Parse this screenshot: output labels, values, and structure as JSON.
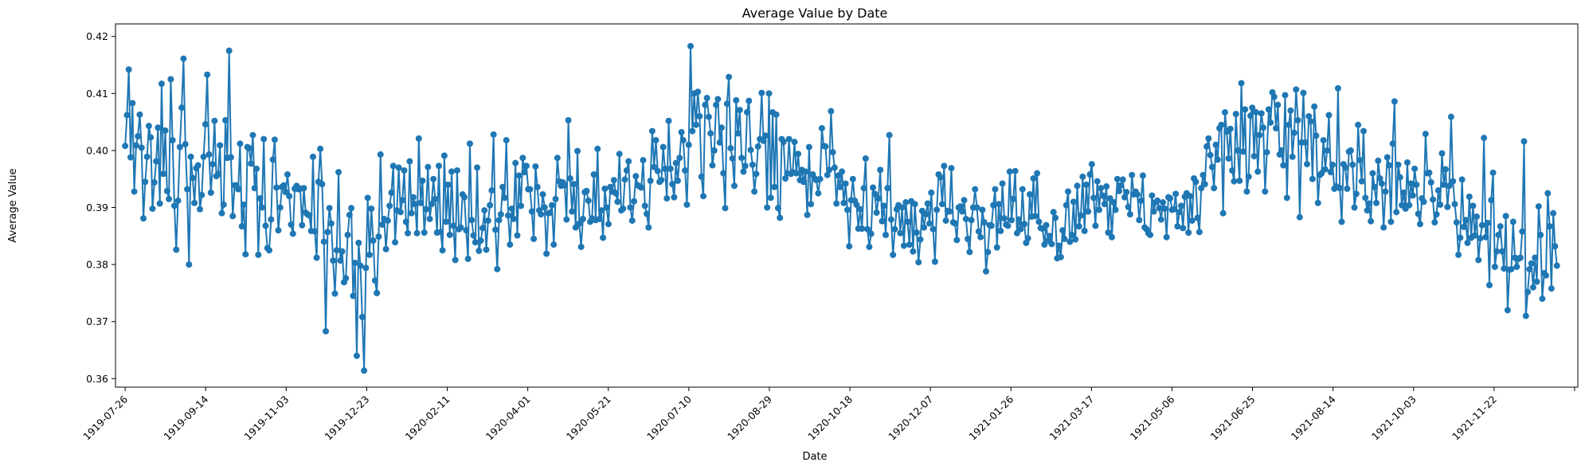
{
  "chart_data": {
    "type": "line",
    "title": "Average Value by Date",
    "xlabel": "Date",
    "ylabel": "Average Value",
    "x_range": [
      "1919-07-20",
      "1922-01-13"
    ],
    "ylim": [
      0.3585,
      0.4222
    ],
    "grid": false,
    "legend": "none",
    "marker": "circle",
    "color": "#1f77b4",
    "x_ticks": [
      "1919-07-26",
      "1919-09-14",
      "1919-11-03",
      "1919-12-23",
      "1920-02-11",
      "1920-04-01",
      "1920-05-21",
      "1920-07-10",
      "1920-08-29",
      "1920-10-18",
      "1920-12-07",
      "1921-01-26",
      "1921-03-17",
      "1921-05-06",
      "1921-06-25",
      "1921-08-14",
      "1921-10-03",
      "1921-11-22",
      ""
    ],
    "y_ticks": [
      0.36,
      0.37,
      0.38,
      0.39,
      0.4,
      0.41,
      0.42
    ],
    "y_tick_labels": [
      "0.36",
      "0.37",
      "0.38",
      "0.39",
      "0.40",
      "0.41",
      "0.42"
    ],
    "series": [
      {
        "start": "1919-07-26",
        "end": "1921-12-31",
        "values": [
          0.4008,
          0.4062,
          0.4142,
          0.3988,
          0.4083,
          0.3928,
          0.4009,
          0.4025,
          0.4063,
          0.4005,
          0.3881,
          0.3945,
          0.3989,
          0.4043,
          0.4023,
          0.3898,
          0.3944,
          0.3981,
          0.404,
          0.3907,
          0.4117,
          0.3959,
          0.4035,
          0.3929,
          0.3915,
          0.4125,
          0.4018,
          0.3903,
          0.3826,
          0.3912,
          0.4006,
          0.4075,
          0.4161,
          0.4011,
          0.3932,
          0.38,
          0.3989,
          0.3952,
          0.3908,
          0.3969,
          0.3974,
          0.3897,
          0.3922,
          0.3989,
          0.4046,
          0.4133,
          0.3993,
          0.3926,
          0.3976,
          0.4052,
          0.3955,
          0.3959,
          0.4009,
          0.389,
          0.3905,
          0.4053,
          0.3987,
          0.4175,
          0.3988,
          0.3885,
          0.3939,
          0.3939,
          0.3932,
          0.4012,
          0.3867,
          0.3905,
          0.3818,
          0.4006,
          0.4004,
          0.3977,
          0.4027,
          0.3934,
          0.3968,
          0.3817,
          0.3916,
          0.39,
          0.402,
          0.3868,
          0.3829,
          0.3825,
          0.3879,
          0.3984,
          0.4019,
          0.3935,
          0.386,
          0.39,
          0.3936,
          0.3939,
          0.3927,
          0.3958,
          0.392,
          0.387,
          0.3854,
          0.3933,
          0.3938,
          0.3932,
          0.3933,
          0.3869,
          0.3934,
          0.3891,
          0.3888,
          0.3886,
          0.3859,
          0.3989,
          0.3858,
          0.3812,
          0.3945,
          0.4003,
          0.3941,
          0.384,
          0.3683,
          0.3857,
          0.3899,
          0.3872,
          0.3807,
          0.3749,
          0.3825,
          0.3962,
          0.3807,
          0.3823,
          0.3769,
          0.3776,
          0.3852,
          0.3887,
          0.3899,
          0.3745,
          0.3803,
          0.364,
          0.3838,
          0.3798,
          0.3708,
          0.3614,
          0.3794,
          0.3917,
          0.3817,
          0.3898,
          0.3842,
          0.3772,
          0.375,
          0.3849,
          0.3993,
          0.387,
          0.388,
          0.3827,
          0.3877,
          0.3903,
          0.3926,
          0.3973,
          0.3839,
          0.3895,
          0.397,
          0.3892,
          0.3913,
          0.3965,
          0.3875,
          0.3855,
          0.3981,
          0.389,
          0.3918,
          0.3906,
          0.3855,
          0.4021,
          0.3908,
          0.3947,
          0.3856,
          0.3897,
          0.3971,
          0.388,
          0.3906,
          0.395,
          0.3915,
          0.3856,
          0.3973,
          0.3857,
          0.3825,
          0.3991,
          0.3875,
          0.394,
          0.3852,
          0.3963,
          0.3868,
          0.3808,
          0.3965,
          0.3862,
          0.3865,
          0.3923,
          0.3918,
          0.386,
          0.381,
          0.4012,
          0.3878,
          0.3851,
          0.3839,
          0.397,
          0.3824,
          0.3842,
          0.3864,
          0.3895,
          0.3826,
          0.3877,
          0.3904,
          0.393,
          0.4028,
          0.3861,
          0.3792,
          0.3878,
          0.3888,
          0.3936,
          0.3917,
          0.4018,
          0.3886,
          0.3835,
          0.3898,
          0.388,
          0.3978,
          0.3851,
          0.3956,
          0.3903,
          0.3987,
          0.3962,
          0.3973,
          0.3932,
          0.3932,
          0.3893,
          0.3845,
          0.3972,
          0.3936,
          0.3895,
          0.3888,
          0.3923,
          0.39,
          0.3819,
          0.389,
          0.3891,
          0.3904,
          0.3835,
          0.3915,
          0.3987,
          0.3946,
          0.3938,
          0.3944,
          0.3939,
          0.3879,
          0.4053,
          0.3951,
          0.3893,
          0.3941,
          0.3865,
          0.3999,
          0.3872,
          0.3831,
          0.388,
          0.3927,
          0.3929,
          0.3912,
          0.3875,
          0.3881,
          0.3958,
          0.3878,
          0.4003,
          0.388,
          0.3895,
          0.3847,
          0.3933,
          0.39,
          0.3871,
          0.3936,
          0.3928,
          0.3948,
          0.3925,
          0.391,
          0.3994,
          0.3895,
          0.3898,
          0.3949,
          0.3965,
          0.3981,
          0.39,
          0.3877,
          0.3911,
          0.3955,
          0.3939,
          0.3937,
          0.3935,
          0.3983,
          0.3903,
          0.3889,
          0.3865,
          0.3947,
          0.4034,
          0.3971,
          0.4018,
          0.3964,
          0.3945,
          0.3948,
          0.4006,
          0.3968,
          0.3916,
          0.4052,
          0.3968,
          0.3941,
          0.3918,
          0.3978,
          0.3947,
          0.3987,
          0.4032,
          0.4018,
          0.3965,
          0.3905,
          0.401,
          0.4183,
          0.4034,
          0.41,
          0.4045,
          0.4103,
          0.406,
          0.3954,
          0.392,
          0.408,
          0.4092,
          0.4059,
          0.403,
          0.3974,
          0.4,
          0.408,
          0.409,
          0.4014,
          0.404,
          0.396,
          0.3899,
          0.4082,
          0.4129,
          0.4004,
          0.3986,
          0.3938,
          0.4088,
          0.403,
          0.4071,
          0.3987,
          0.3963,
          0.3973,
          0.4067,
          0.4087,
          0.4001,
          0.3975,
          0.3928,
          0.3959,
          0.4007,
          0.402,
          0.4101,
          0.4017,
          0.4026,
          0.39,
          0.41,
          0.3917,
          0.4067,
          0.3936,
          0.4063,
          0.3899,
          0.3882,
          0.402,
          0.4015,
          0.3951,
          0.396,
          0.402,
          0.3959,
          0.3962,
          0.4015,
          0.396,
          0.3994,
          0.3948,
          0.3966,
          0.3945,
          0.3963,
          0.3887,
          0.4006,
          0.3906,
          0.3958,
          0.3951,
          0.3948,
          0.3925,
          0.395,
          0.4039,
          0.4008,
          0.4007,
          0.3957,
          0.3966,
          0.4069,
          0.3997,
          0.397,
          0.3907,
          0.3956,
          0.3936,
          0.3963,
          0.3908,
          0.3942,
          0.3896,
          0.3832,
          0.3913,
          0.395,
          0.3912,
          0.3905,
          0.3863,
          0.3897,
          0.3863,
          0.3934,
          0.3986,
          0.3862,
          0.3831,
          0.3854,
          0.3935,
          0.3924,
          0.3891,
          0.3916,
          0.3966,
          0.3876,
          0.3903,
          0.3852,
          0.3934,
          0.4027,
          0.3879,
          0.3817,
          0.3862,
          0.3897,
          0.3904,
          0.3855,
          0.39,
          0.3833,
          0.3909,
          0.3875,
          0.3835,
          0.3911,
          0.3823,
          0.3906,
          0.3856,
          0.3804,
          0.3844,
          0.3894,
          0.3865,
          0.3888,
          0.3907,
          0.3872,
          0.3926,
          0.3862,
          0.3805,
          0.3896,
          0.3958,
          0.3953,
          0.3906,
          0.3973,
          0.3877,
          0.3894,
          0.3893,
          0.3969,
          0.3874,
          0.3872,
          0.3843,
          0.39,
          0.3902,
          0.3893,
          0.3913,
          0.388,
          0.3845,
          0.3822,
          0.3878,
          0.39,
          0.3932,
          0.39,
          0.3858,
          0.3848,
          0.3896,
          0.3874,
          0.3788,
          0.3822,
          0.3869,
          0.3868,
          0.3904,
          0.3932,
          0.383,
          0.3906,
          0.3859,
          0.3942,
          0.3881,
          0.387,
          0.3868,
          0.3963,
          0.3878,
          0.3915,
          0.3964,
          0.3855,
          0.3879,
          0.3862,
          0.3932,
          0.3871,
          0.3838,
          0.3846,
          0.3923,
          0.3884,
          0.3951,
          0.3885,
          0.396,
          0.3875,
          0.3864,
          0.3863,
          0.3835,
          0.3869,
          0.3842,
          0.385,
          0.3836,
          0.3892,
          0.3882,
          0.3811,
          0.3833,
          0.3813,
          0.386,
          0.3845,
          0.3904,
          0.3928,
          0.384,
          0.3852,
          0.391,
          0.3844,
          0.3938,
          0.3867,
          0.3886,
          0.3954,
          0.3859,
          0.394,
          0.3893,
          0.3958,
          0.3976,
          0.3917,
          0.3868,
          0.3946,
          0.3896,
          0.3934,
          0.3921,
          0.3906,
          0.3937,
          0.3856,
          0.3916,
          0.3848,
          0.3909,
          0.3896,
          0.395,
          0.3929,
          0.3939,
          0.3949,
          0.3918,
          0.3927,
          0.3901,
          0.3888,
          0.3957,
          0.3923,
          0.3928,
          0.3923,
          0.3878,
          0.3912,
          0.3956,
          0.3865,
          0.3862,
          0.3855,
          0.3852,
          0.3921,
          0.3893,
          0.3909,
          0.3912,
          0.3899,
          0.3879,
          0.3909,
          0.3898,
          0.3848,
          0.3918,
          0.3916,
          0.3896,
          0.3897,
          0.3924,
          0.3867,
          0.3892,
          0.3903,
          0.3864,
          0.3919,
          0.3925,
          0.3856,
          0.392,
          0.3877,
          0.3951,
          0.3945,
          0.3882,
          0.3857,
          0.3934,
          0.3957,
          0.3941,
          0.4007,
          0.4021,
          0.3992,
          0.3971,
          0.3934,
          0.401,
          0.3984,
          0.4039,
          0.4045,
          0.389,
          0.4067,
          0.4033,
          0.3986,
          0.4038,
          0.3965,
          0.3946,
          0.4064,
          0.4,
          0.3947,
          0.4118,
          0.3998,
          0.4072,
          0.3928,
          0.3954,
          0.4061,
          0.4075,
          0.399,
          0.4067,
          0.3963,
          0.4027,
          0.4065,
          0.404,
          0.3928,
          0.3997,
          0.4072,
          0.4049,
          0.4102,
          0.4094,
          0.4039,
          0.408,
          0.3993,
          0.4,
          0.3974,
          0.4097,
          0.3917,
          0.4045,
          0.407,
          0.3989,
          0.4031,
          0.4107,
          0.4053,
          0.3883,
          0.4014,
          0.4101,
          0.4014,
          0.3976,
          0.406,
          0.4051,
          0.395,
          0.4077,
          0.4026,
          0.3908,
          0.3957,
          0.396,
          0.4018,
          0.3967,
          0.4,
          0.4062,
          0.3962,
          0.3975,
          0.3933,
          0.3937,
          0.4109,
          0.3934,
          0.3875,
          0.3976,
          0.397,
          0.3933,
          0.3998,
          0.4,
          0.3975,
          0.39,
          0.3924,
          0.4045,
          0.3983,
          0.3946,
          0.4034,
          0.3917,
          0.3895,
          0.3907,
          0.3876,
          0.396,
          0.3936,
          0.3908,
          0.3982,
          0.3951,
          0.3942,
          0.3865,
          0.3928,
          0.3988,
          0.3974,
          0.3875,
          0.4012,
          0.4086,
          0.3892,
          0.3975,
          0.3953,
          0.3904,
          0.3926,
          0.3898,
          0.3979,
          0.3904,
          0.3942,
          0.3921,
          0.3968,
          0.394,
          0.3889,
          0.3871,
          0.3916,
          0.391,
          0.4029,
          0.396,
          0.3961,
          0.3944,
          0.3914,
          0.3874,
          0.3888,
          0.393,
          0.3905,
          0.3995,
          0.394,
          0.3967,
          0.3901,
          0.3938,
          0.4059,
          0.3946,
          0.3906,
          0.3874,
          0.3817,
          0.3847,
          0.3949,
          0.3866,
          0.3878,
          0.3838,
          0.3919,
          0.3847,
          0.3903,
          0.3851,
          0.3884,
          0.3808,
          0.3846,
          0.3869,
          0.4022,
          0.3848,
          0.3873,
          0.3764,
          0.3913,
          0.3961,
          0.3796,
          0.3823,
          0.3852,
          0.3867,
          0.3823,
          0.3793,
          0.3885,
          0.372,
          0.3791,
          0.3792,
          0.3875,
          0.3812,
          0.3796,
          0.381,
          0.3812,
          0.3858,
          0.4016,
          0.371,
          0.3752,
          0.3792,
          0.3802,
          0.376,
          0.3812,
          0.377,
          0.3902,
          0.3852,
          0.374,
          0.3785,
          0.3781,
          0.3925,
          0.3867,
          0.3758,
          0.389,
          0.3832,
          0.3798
        ]
      }
    ]
  }
}
